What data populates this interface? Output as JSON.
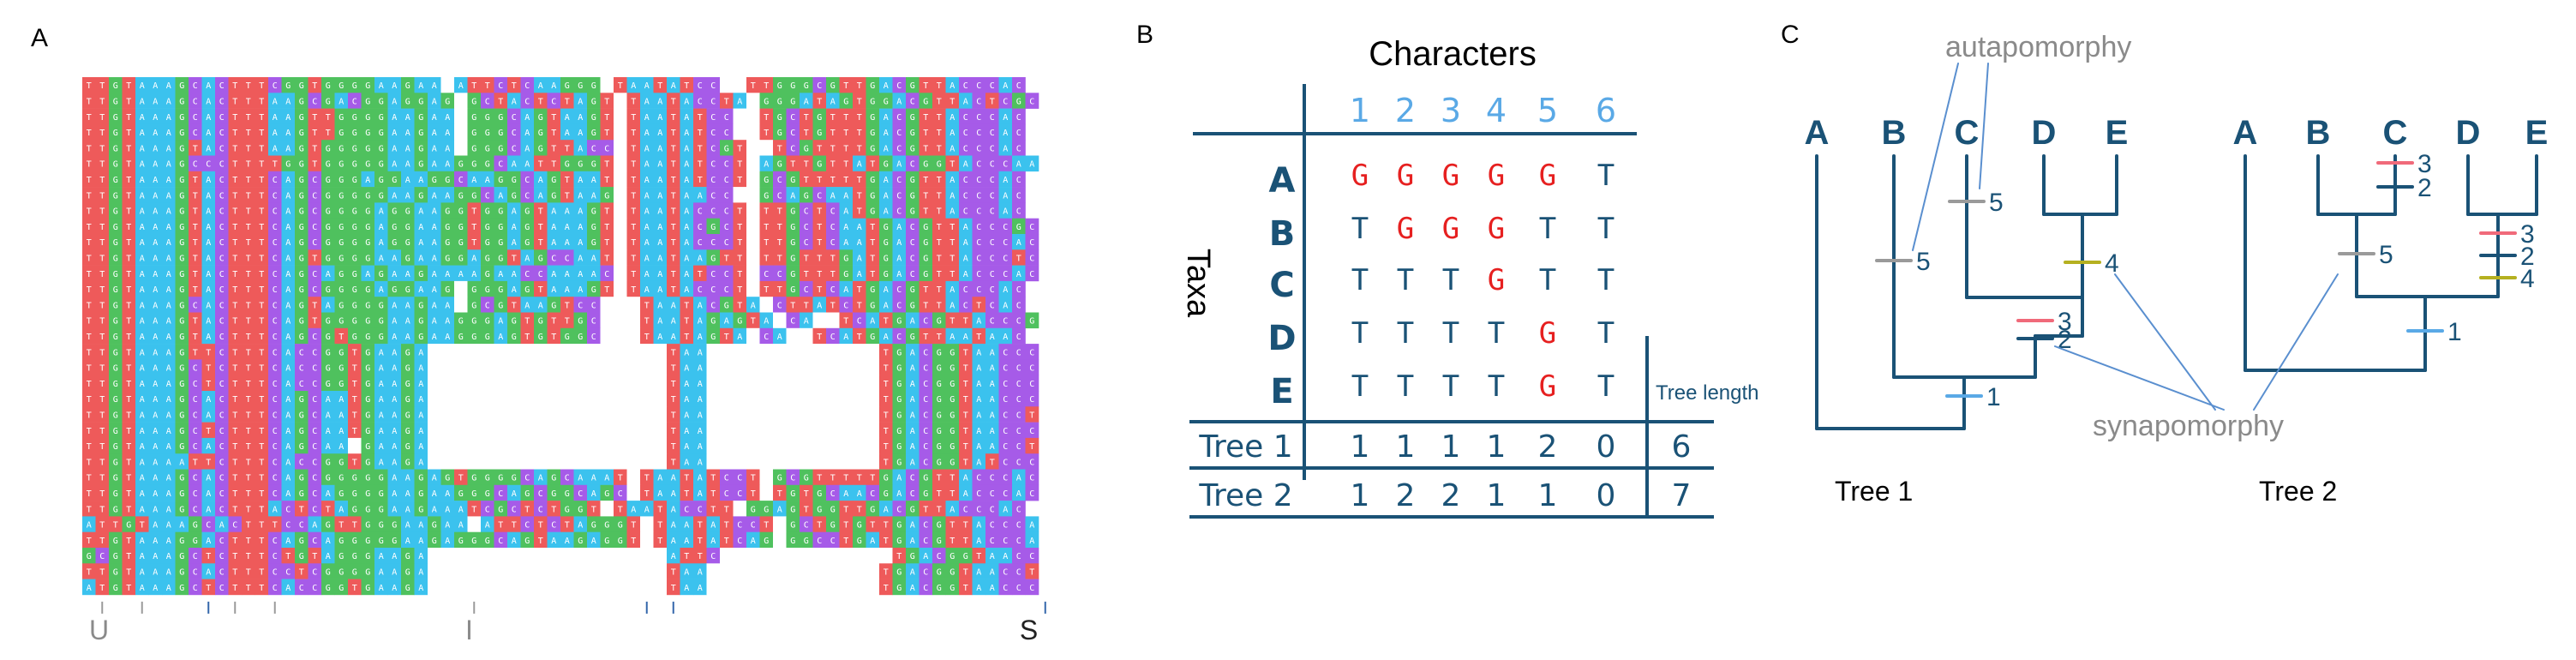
{
  "panels": {
    "a_label": "A",
    "b_label": "B",
    "c_label": "C"
  },
  "alignment": {
    "markers": [
      "U",
      "I",
      "S"
    ],
    "colors": {
      "T": "#ee5a5a",
      "G": "#4fc15e",
      "A": "#3bc2ee",
      "C": "#a65be8",
      "gap": "#ffffff"
    },
    "rows": [
      "TTGTAAAGCACTTTCGGTGGGGAAGAA-ATTCTCAAGGG-TAATATCC--TTGGGCGTTGACGTTACCCAC",
      "TTGTAAAGCACTTTAAGCGACGGAGGAG-GCTACTCTAGT-TAATACCTA-GGGATAGTGGACGTTACTCGC",
      "TTGTAAAGCACTTTAAGTTGGGGAAGAA-GGGCAGTAAGT-TAATATCC--TGCTGTTTGACGTTACCCAC",
      "TTGTAAAGCACTTTAAGTTGGGGAAGAA-GGGCAGTAAGT-TAATATCC--TGCTGTTTGACGTTACCCAC",
      "TTGTAAAGTACTTTAAGTGGGGGAAGAA-GGGCAGTTACC-TAATATCGT-RTCGTTTTGACGTTACCCAC",
      "TTGTAAAGCCCTTTTGGTGGGGGAAGAAGGGCAATTGGGT-TAATATCCT-AGTTGTTATGACGGTACCCAA",
      "TTGTAAAGTACTTTCAGCGGGAGGAAGGCAAGGCAGTAAT-TAATATCCT-GCGTTTTTGACGTTACCCAC",
      "TTGTAAAGTACTTTCAGCGGGGGAAGAAGGCAGCAGTAAG-TAATAACC--GCAGCAATGACGTTACCCAC",
      "TTGTAAAGTACTTTCAGCGGGGAGGAAGGTGGAGTAAAGT-TAATACCCT-TTGCTCATGACGTTACCCAC",
      "TTGTAAAGTACTTTCAGCGGGGAGGAAGGTGGAGTAAAGT-TAATACGCT-TTGCTCAATGACGTTACCCGC",
      "TTGTAAAGTACTTTCAGCGGGGAGGAAGGTGGAGTAAAGT-TAATACCCT-TTGCTCAATGACGTTACCCAC",
      "TTGTAAAGTACTTTCAGTGGGGAAGAAGGAGGTAGCCAAT-TAATAAGTT-TTGTTTGATGACGTTACCCTC",
      "TTGTAAAGTACTTTCAGCAGGAGAAGAAAAGAACCAAAAC-TAATATCCT-CCGTTTGATGACGTTACCCAC",
      "TTGTAAAGTACTTTCAGCGGGGAGGAAG-GGGAGTAAAGT-TAATACCCT-TTGCTCATGACGTTACCCAC",
      "TTGTAAAGCACTTTCAGTAGGGGAAGAA-GCGTAAGTCC---TAATACGTA-CTTATCTGACGTTACTCAC",
      "TTGTAAAGTACTTTCAGTGGGGGAAGAAGGGAGTGTTGC---TAATAGAGTA-CA??TCATGACGTTACCCGC",
      "TTGTAAAGTACTTTCAGCGTGGGAAGAAGGGAGTGTGGC---TAATAGTA-CA??TCATGACGTTAATAAC",
      "TTGTAAAGTTCTTTCACCGGTGAAGA..................TAA.............TGACGGTAACCCAC",
      "TTGTAAAGCTCTTTCACCGGTGAAGA..................TAA.............TGACGGTAACCCAC",
      "TTGTAAAGCTCTTTCACCGGTGAAGA..................TAA.............TGACGGTAACCCAC",
      "TTGTAAAGCACTTTCAGCAATGAAGA..................TAA.............TGACGGTAACCCAC",
      "TTGTAAAGCACTTTCAGCAATGAAGA..................TAA.............TGACGGTAACCTGC",
      "TTGTAAAGCTCTTTCAGCAATGAAGA..................TAA.............TGACGGTAACCCAC",
      "TTGTAAAGCACTTTCAGCAA?GAAGA..................TAA.............TGACGGTAACCTTC",
      "TTGTAAAATTCTTTCACCGGTGAAGA..................TAA.............TGACGGTATCCCAC",
      "TTGTAAAGCACTTTCAGCGGGGGAAGAGTGGGGCAGCAAAT-TAATATCCT-GCGTTTTTGACGTTACCCAC",
      "TTGTAAAGCACTTTCAGCAGGGGAAGAAGGGCAGCGGCAGC-TAATATCCT-TGTGCAACGACGTTACCCAC",
      "TTGTAAAGCACTTTACTCTAGGGAAGAAATCGCTCTGGT-TAATACCTT-GGAGTGGTTGACGTTACCCAC",
      "ATTGTAAAGCACTTTCCAGTTGGGAAGAA-ATTCTCTAGGGT-TAATATCCT-GCTGTGTTGACGTTACCCAC",
      "TTGTAAAGGACTTTCAGCAGGGGGAAGAGGGCAGTAAGAGGT-TAATATCAG-GGCCTGATGACGTTACCCAC",
      "GCGTAAAGCTCTTTCTGTAGGGAAGA..................ATTC.............TGACGGTAACCCAC",
      "TTGTAAAGCACTTTCCTCGGGGAAGA..................TAA.............TGACGGTAACCTAA",
      "ATGTAAAGCTCTTTCACCGGTGAAGA..................TAA.............TGACGGTAACCCAC"
    ]
  },
  "table": {
    "characters_title": "Characters",
    "taxa_title": "Taxa",
    "char_numbers": [
      "1",
      "2",
      "3",
      "4",
      "5",
      "6"
    ],
    "taxa": [
      {
        "name": "A",
        "states": [
          "G",
          "G",
          "G",
          "G",
          "G",
          "T"
        ]
      },
      {
        "name": "B",
        "states": [
          "T",
          "G",
          "G",
          "G",
          "T",
          "T"
        ]
      },
      {
        "name": "C",
        "states": [
          "T",
          "T",
          "T",
          "G",
          "T",
          "T"
        ]
      },
      {
        "name": "D",
        "states": [
          "T",
          "T",
          "T",
          "T",
          "G",
          "T"
        ]
      },
      {
        "name": "E",
        "states": [
          "T",
          "T",
          "T",
          "T",
          "G",
          "T"
        ]
      }
    ],
    "tree_length_label": "Tree length",
    "tree_rows": [
      {
        "label": "Tree 1",
        "steps": [
          "1",
          "1",
          "1",
          "1",
          "2",
          "0"
        ],
        "length": "6"
      },
      {
        "label": "Tree 2",
        "steps": [
          "1",
          "2",
          "2",
          "1",
          "1",
          "0"
        ],
        "length": "7"
      }
    ],
    "colors": {
      "dark": "#1a5276",
      "light": "#5aa9e6",
      "red": "#e62020"
    }
  },
  "trees": {
    "autapomorphy_label": "autapomorphy",
    "synapomorphy_label": "synapomorphy",
    "tree1_label": "Tree 1",
    "tree2_label": "Tree 2",
    "tree1_tips": [
      "A",
      "B",
      "C",
      "D",
      "E"
    ],
    "tree2_tips": [
      "A",
      "B",
      "C",
      "D",
      "E"
    ],
    "tree1_marks": [
      "5",
      "5",
      "4",
      "3",
      "2",
      "1"
    ],
    "tree2_marks": [
      "3",
      "2",
      "5",
      "3",
      "2",
      "4",
      "1"
    ],
    "colors": {
      "branch": "#1a5276",
      "annotation": "#8a8a8a",
      "mark_grey": "#9a9a9a",
      "mark_pink": "#f06a7a",
      "mark_dark": "#1a5276",
      "mark_olive": "#b5b020",
      "mark_blue": "#5aa9e6"
    }
  }
}
